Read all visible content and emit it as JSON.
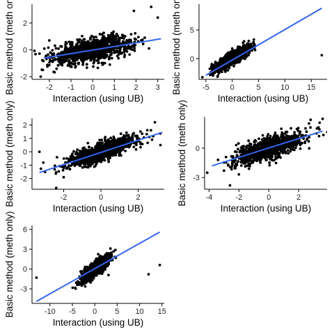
{
  "colors": {
    "points": "#000000",
    "fit_line": "#3366ee",
    "axis": "#000000"
  },
  "chart_data": [
    {
      "type": "scatter",
      "panel": 1,
      "xlabel": "Interaction (using UB)",
      "ylabel": "Basic method (meth only)",
      "xlim": [
        -2.8,
        3.3
      ],
      "ylim": [
        -2.2,
        3.4
      ],
      "xticks": [
        -2,
        -1,
        0,
        1,
        2,
        3
      ],
      "yticks": [
        -2,
        0,
        2
      ],
      "fit": {
        "x": [
          -2.25,
          3.15
        ],
        "y": [
          -0.62,
          0.82
        ]
      },
      "cloud": {
        "n": 1100,
        "x_center": 0,
        "x_spread": 0.9,
        "slope": 0.27,
        "noise": 0.42
      },
      "points": [
        [
          -2.4,
          -2.0
        ],
        [
          -2.3,
          -1.5
        ],
        [
          -2.0,
          0.7
        ],
        [
          2.7,
          3.2
        ],
        [
          3.0,
          2.4
        ],
        [
          1.9,
          2.9
        ],
        [
          2.4,
          0.9
        ],
        [
          2.6,
          0.1
        ]
      ],
      "grid": false,
      "legend": "none"
    },
    {
      "type": "scatter",
      "panel": 2,
      "xlabel": "Interaction (using UB)",
      "ylabel": "Basic method (meth only)",
      "xlim": [
        -6.3,
        18.0
      ],
      "ylim": [
        -3.6,
        9.5
      ],
      "xticks": [
        -5,
        0,
        5,
        10,
        15
      ],
      "yticks": [
        0,
        5
      ],
      "fit": {
        "x": [
          -5.0,
          17.0
        ],
        "y": [
          -2.9,
          8.8
        ]
      },
      "cloud": {
        "n": 1100,
        "x_center": 0,
        "x_spread": 1.7,
        "slope": 0.55,
        "noise": 0.55
      },
      "points": [
        [
          17.0,
          0.6
        ],
        [
          -4.0,
          -2.6
        ]
      ],
      "grid": false,
      "legend": "none"
    },
    {
      "type": "scatter",
      "panel": 3,
      "xlabel": "Interaction (using UB)",
      "ylabel": "Basic method (meth only)",
      "xlim": [
        -3.7,
        3.4
      ],
      "ylim": [
        -2.8,
        2.5
      ],
      "xticks": [
        -2,
        0,
        2
      ],
      "yticks": [
        -2,
        -1,
        0,
        1,
        2
      ],
      "fit": {
        "x": [
          -3.3,
          3.3
        ],
        "y": [
          -1.55,
          1.45
        ]
      },
      "cloud": {
        "n": 1100,
        "x_center": 0,
        "x_spread": 0.95,
        "slope": 0.45,
        "noise": 0.33
      },
      "points": [
        [
          -3.3,
          0.0
        ],
        [
          -3.0,
          -1.5
        ],
        [
          -2.4,
          -2.7
        ],
        [
          -2.0,
          -1.9
        ],
        [
          3.2,
          0.5
        ],
        [
          2.9,
          2.2
        ]
      ],
      "grid": false,
      "legend": "none"
    },
    {
      "type": "scatter",
      "panel": 4,
      "xlabel": "Interaction (using UB)",
      "ylabel": "Basic method (meth only)",
      "xlim": [
        -4.3,
        3.9
      ],
      "ylim": [
        -4.2,
        3.2
      ],
      "xticks": [
        -4,
        -2,
        0,
        2
      ],
      "yticks": [
        -3,
        0
      ],
      "fit": {
        "x": [
          -3.8,
          3.6
        ],
        "y": [
          -1.8,
          1.75
        ]
      },
      "cloud": {
        "n": 1100,
        "x_center": 0,
        "x_spread": 1.1,
        "slope": 0.48,
        "noise": 0.55
      },
      "points": [
        [
          -3.4,
          -1.2
        ],
        [
          -3.0,
          -2.3
        ],
        [
          -2.6,
          -3.8
        ],
        [
          3.4,
          2.6
        ],
        [
          3.6,
          3.0
        ],
        [
          2.8,
          2.9
        ]
      ],
      "grid": false,
      "legend": "none"
    },
    {
      "type": "scatter",
      "panel": 5,
      "xlabel": "Interaction (using UB)",
      "ylabel": "Basic method (meth only)",
      "xlim": [
        -14.0,
        15.5
      ],
      "ylim": [
        -5.2,
        6.6
      ],
      "xticks": [
        -10,
        -5,
        0,
        5,
        10,
        15
      ],
      "yticks": [
        -3,
        0,
        3,
        6
      ],
      "fit": {
        "x": [
          -13.0,
          14.5
        ],
        "y": [
          -4.9,
          5.6
        ]
      },
      "cloud": {
        "n": 1100,
        "x_center": 0,
        "x_spread": 1.6,
        "slope": 0.5,
        "noise": 0.55
      },
      "points": [
        [
          -13.0,
          -1.3
        ],
        [
          12.0,
          -0.8
        ],
        [
          14.5,
          0.6
        ],
        [
          3.5,
          3.1
        ]
      ],
      "grid": false,
      "legend": "none"
    }
  ]
}
